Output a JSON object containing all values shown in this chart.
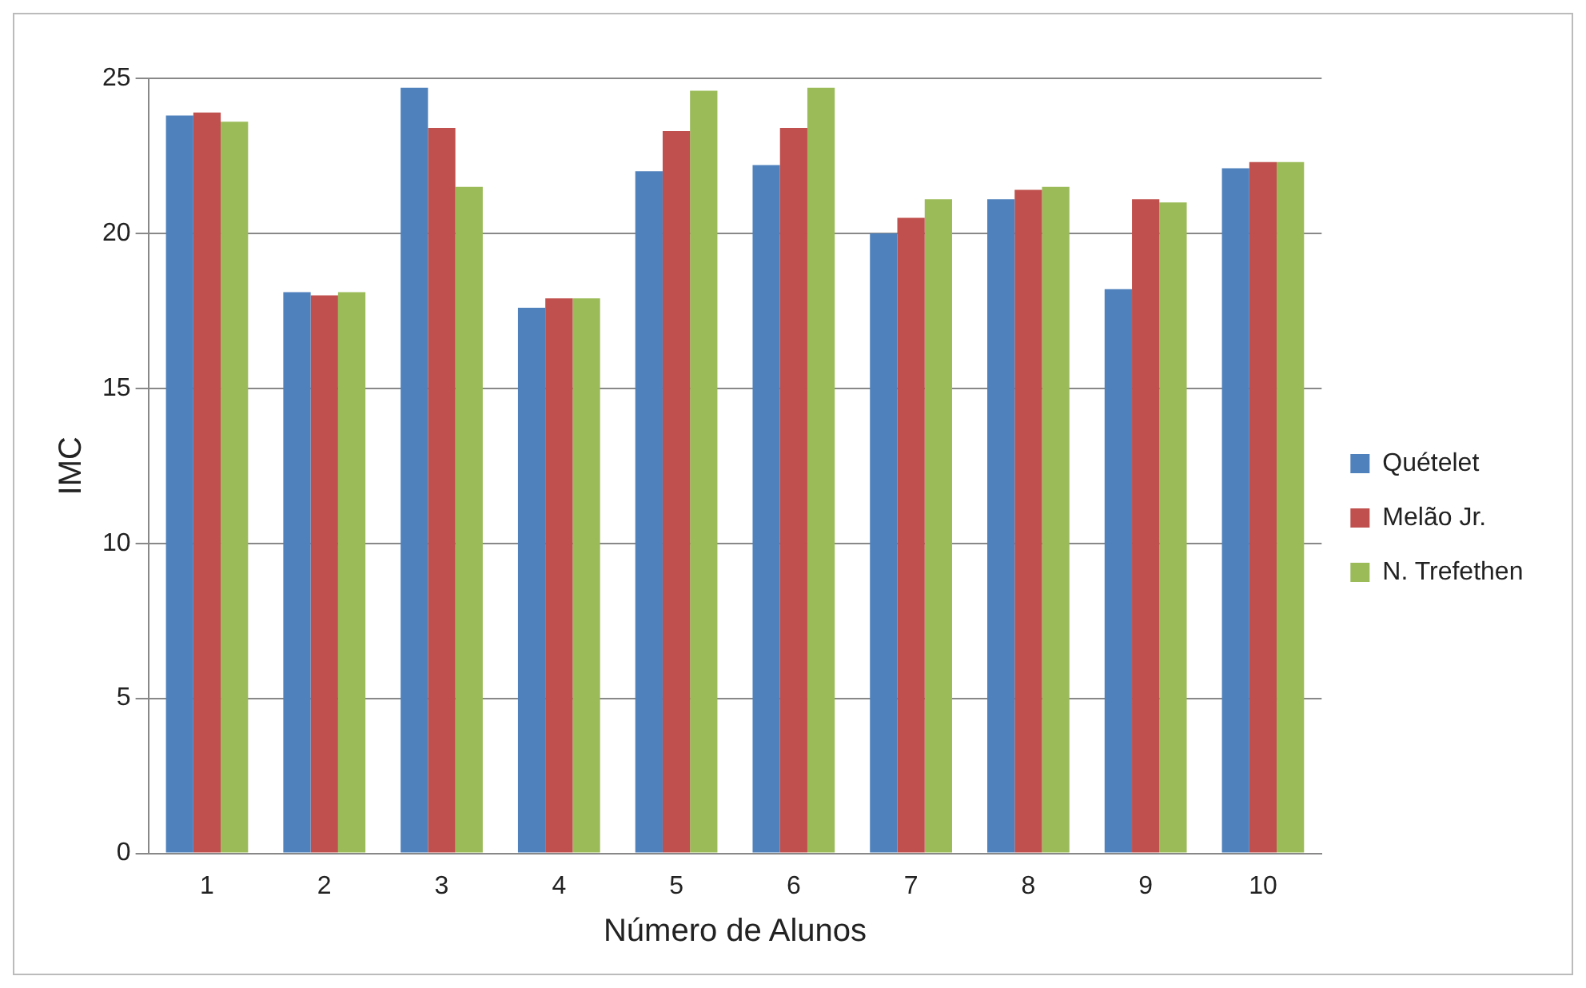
{
  "chart_data": {
    "type": "bar",
    "xlabel": "Número de Alunos",
    "ylabel": "IMC",
    "categories": [
      "1",
      "2",
      "3",
      "4",
      "5",
      "6",
      "7",
      "8",
      "9",
      "10"
    ],
    "series": [
      {
        "name": "Quételet",
        "color": "#4f81bd",
        "values": [
          23.8,
          18.1,
          24.7,
          17.6,
          22.0,
          22.2,
          20.0,
          21.1,
          18.2,
          22.1
        ]
      },
      {
        "name": "Melão Jr.",
        "color": "#c0504d",
        "values": [
          23.9,
          18.0,
          23.4,
          17.9,
          23.3,
          23.4,
          20.5,
          21.4,
          21.1,
          22.3
        ]
      },
      {
        "name": "N. Trefethen",
        "color": "#9bbb59",
        "values": [
          23.6,
          18.1,
          21.5,
          17.9,
          24.6,
          24.7,
          21.1,
          21.5,
          21.0,
          22.3
        ]
      }
    ],
    "ylim": [
      0,
      25
    ],
    "yticks": [
      0,
      5,
      10,
      15,
      20,
      25
    ],
    "grid": "y",
    "legend": "right"
  }
}
